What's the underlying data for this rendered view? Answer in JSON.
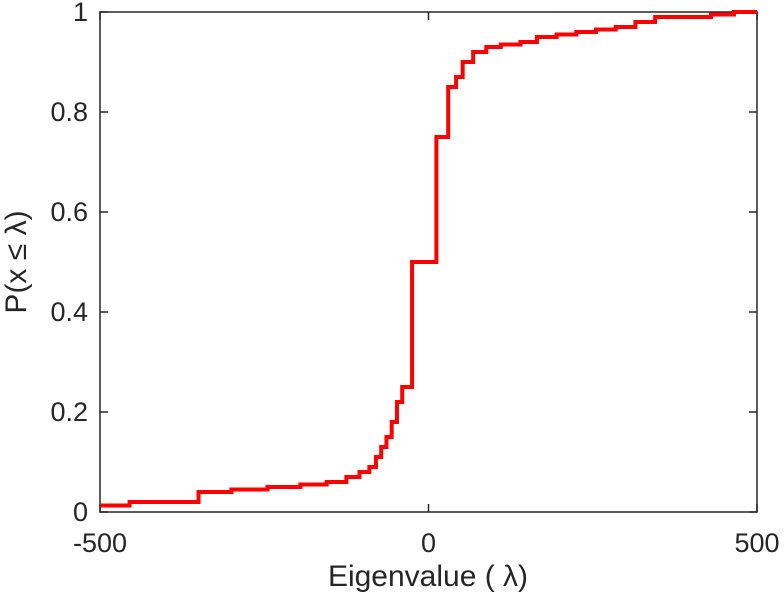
{
  "figure": {
    "background": "#ffffff"
  },
  "chart_data": {
    "type": "line",
    "subtype": "step-ecdf",
    "title": "",
    "xlabel": "Eigenvalue ( λ)",
    "ylabel": "P(x ≤ λ)",
    "xlim": [
      -500,
      500
    ],
    "ylim": [
      0,
      1
    ],
    "grid": false,
    "box": true,
    "legend": "none",
    "axis_color": "#262626",
    "line_color": "#ff0000",
    "line_width": 4,
    "x_ticks": [
      -500,
      0,
      500
    ],
    "x_tick_labels": [
      "-500",
      "0",
      "500"
    ],
    "y_ticks": [
      0,
      0.2,
      0.4,
      0.6,
      0.8,
      1
    ],
    "y_tick_labels": [
      "0",
      "0.2",
      "0.4",
      "0.6",
      "0.8",
      "1"
    ],
    "start": [
      -500,
      0.013
    ],
    "steps": [
      [
        -455,
        0.02
      ],
      [
        -350,
        0.04
      ],
      [
        -300,
        0.045
      ],
      [
        -245,
        0.05
      ],
      [
        -195,
        0.055
      ],
      [
        -155,
        0.06
      ],
      [
        -125,
        0.07
      ],
      [
        -105,
        0.08
      ],
      [
        -90,
        0.09
      ],
      [
        -80,
        0.11
      ],
      [
        -72,
        0.13
      ],
      [
        -64,
        0.15
      ],
      [
        -56,
        0.18
      ],
      [
        -48,
        0.22
      ],
      [
        -40,
        0.25
      ],
      [
        -25,
        0.5
      ],
      [
        12,
        0.75
      ],
      [
        30,
        0.85
      ],
      [
        42,
        0.87
      ],
      [
        52,
        0.9
      ],
      [
        68,
        0.92
      ],
      [
        88,
        0.93
      ],
      [
        110,
        0.935
      ],
      [
        140,
        0.94
      ],
      [
        165,
        0.95
      ],
      [
        195,
        0.955
      ],
      [
        225,
        0.96
      ],
      [
        255,
        0.965
      ],
      [
        285,
        0.97
      ],
      [
        315,
        0.98
      ],
      [
        345,
        0.99
      ],
      [
        430,
        0.995
      ],
      [
        465,
        1.0
      ]
    ]
  }
}
